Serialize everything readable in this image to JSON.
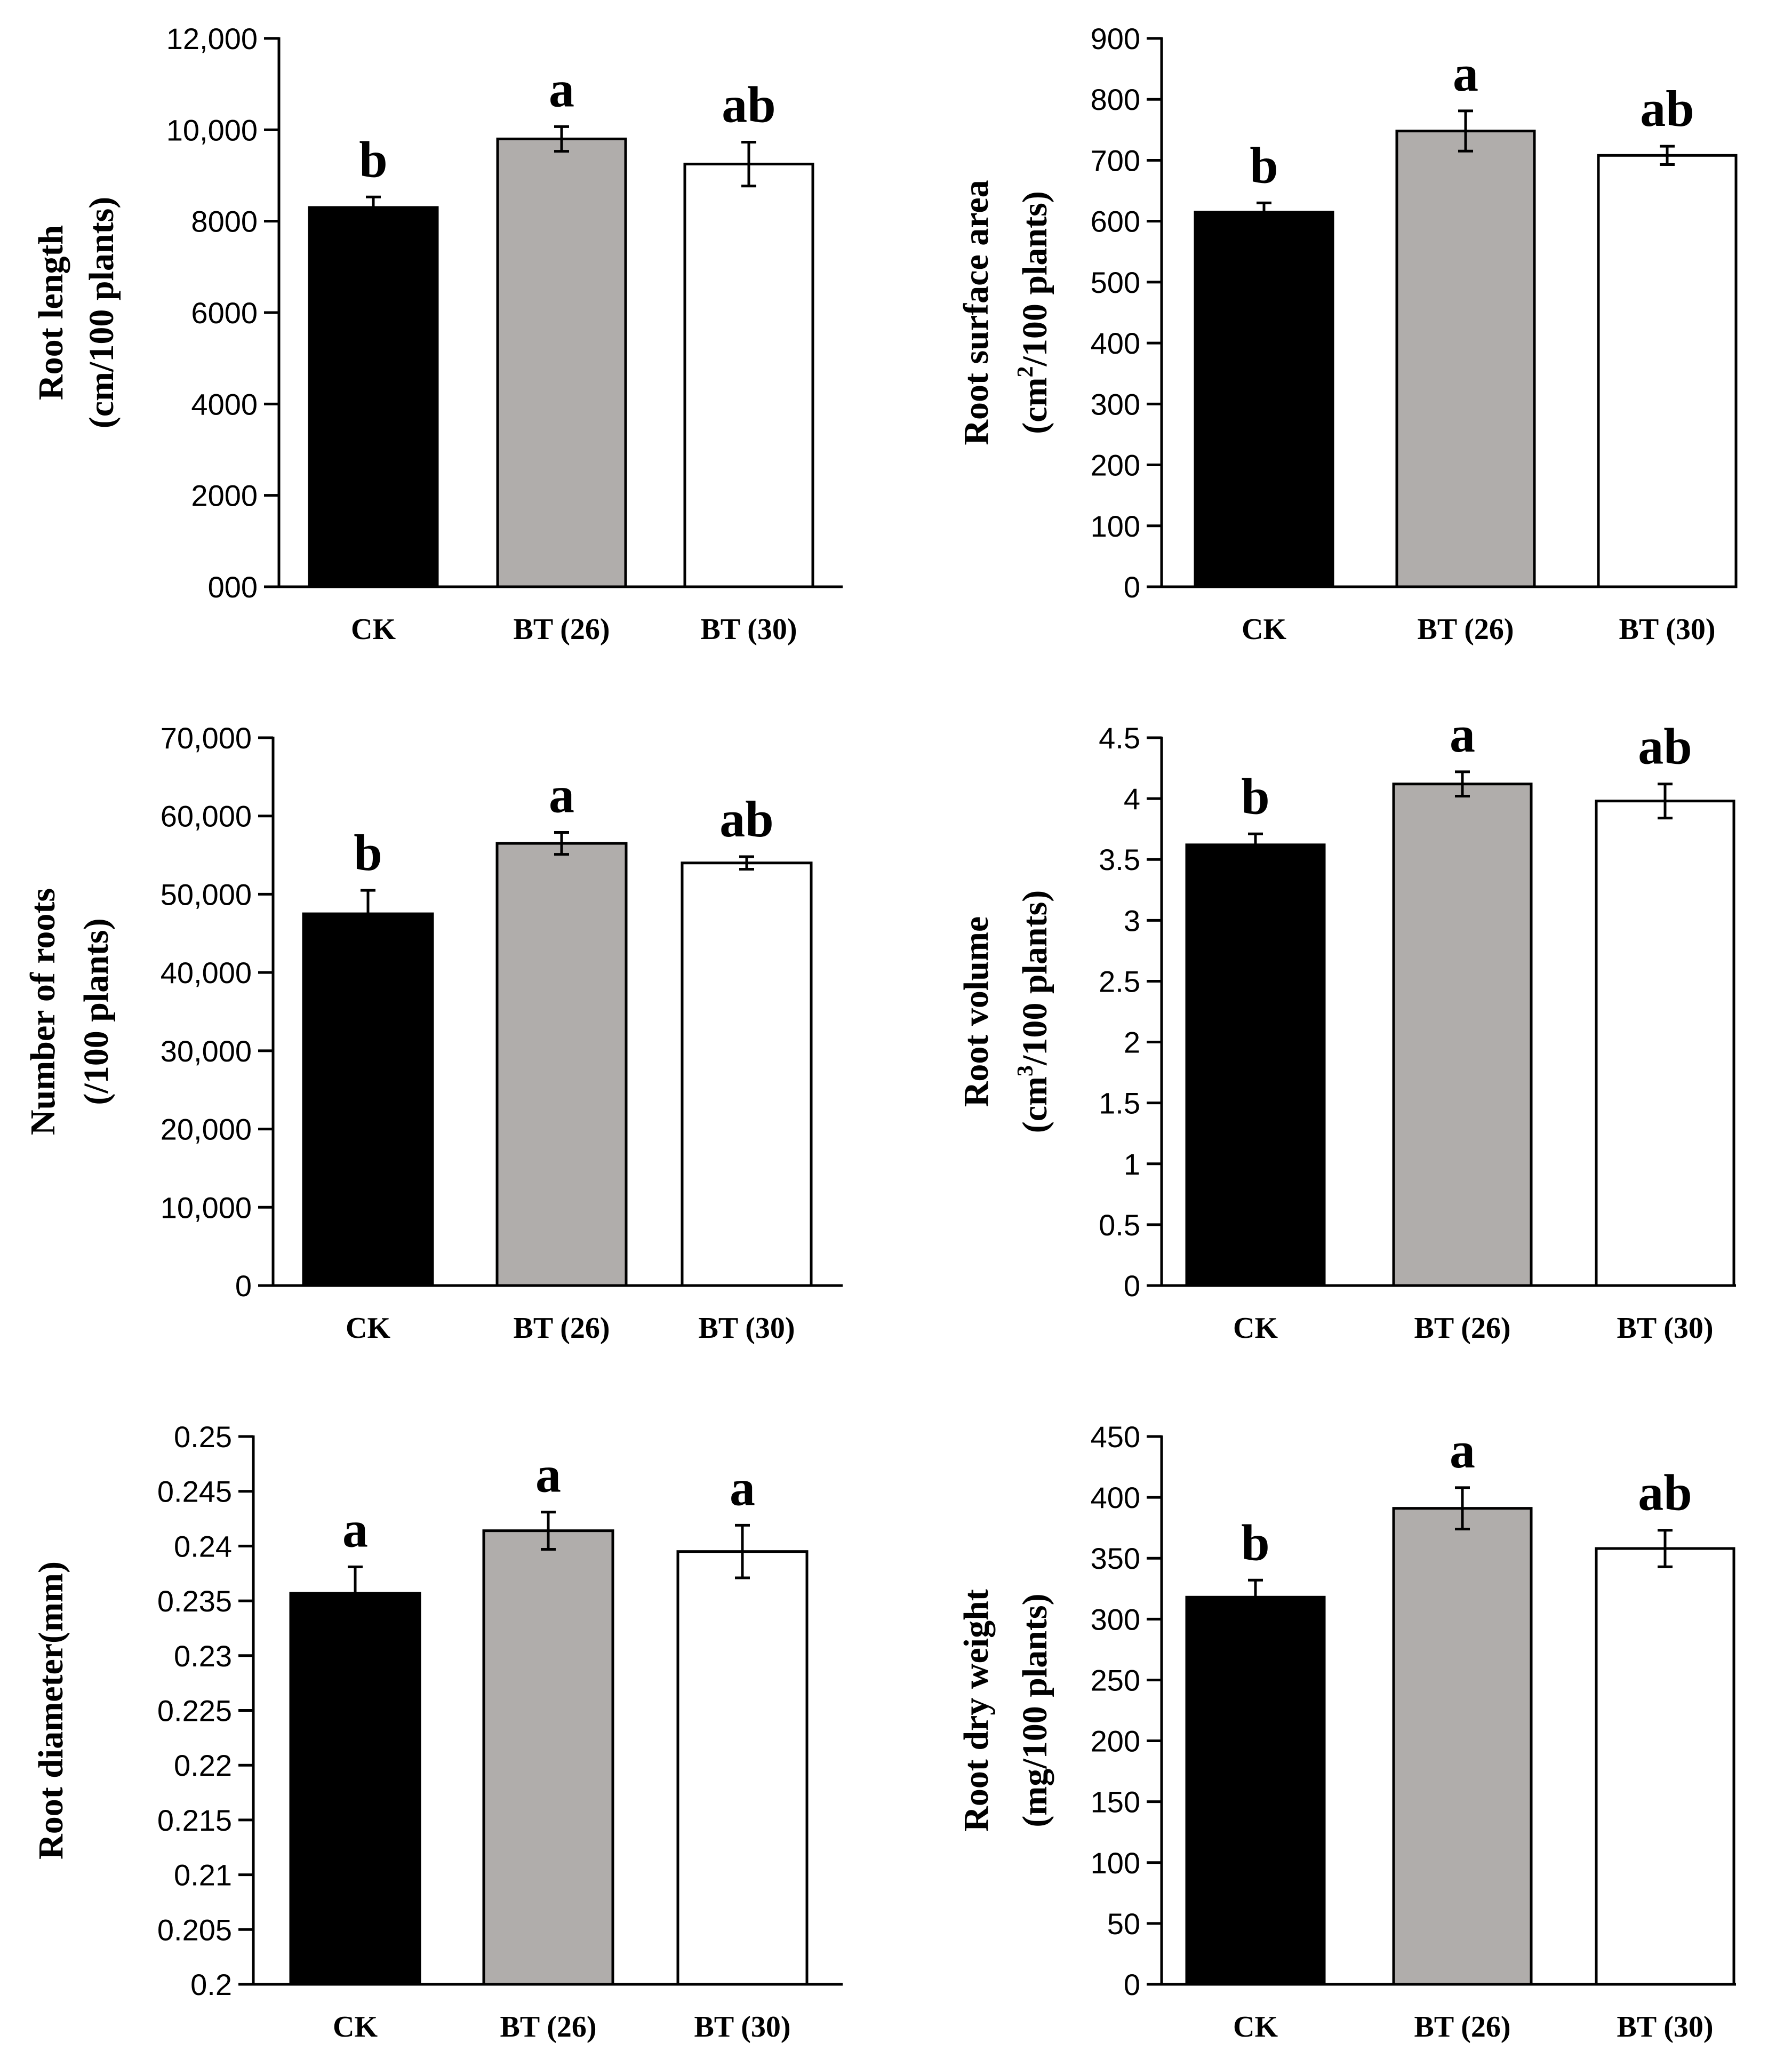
{
  "figure": {
    "categories": [
      "CK",
      "BT (26)",
      "BT (30)"
    ],
    "bar_fill_colors": [
      "#000000",
      "#b0adab",
      "#ffffff"
    ],
    "bar_stroke_color": "#000000"
  },
  "chart_data": [
    {
      "type": "bar",
      "ylabel": [
        "Root length",
        "(cm/100 plants)"
      ],
      "categories": [
        "CK",
        "BT (26)",
        "BT (30)"
      ],
      "values": [
        8300,
        9800,
        9250
      ],
      "errors": [
        230,
        270,
        480
      ],
      "letters": [
        "b",
        "a",
        "ab"
      ],
      "ylim": [
        0,
        12000
      ],
      "ticks": [
        0,
        2000,
        4000,
        6000,
        8000,
        10000,
        12000
      ],
      "tick_labels": [
        "000",
        "2000",
        "4000",
        "6000",
        "8000",
        "10,000",
        "12,000"
      ]
    },
    {
      "type": "bar",
      "ylabel": [
        "Root surface area",
        "(cm",
        "2",
        "/100 plants)"
      ],
      "categories": [
        "CK",
        "BT (26)",
        "BT (30)"
      ],
      "values": [
        615,
        748,
        708
      ],
      "errors": [
        15,
        33,
        15
      ],
      "letters": [
        "b",
        "a",
        "ab"
      ],
      "ylim": [
        0,
        900
      ],
      "ticks": [
        0,
        100,
        200,
        300,
        400,
        500,
        600,
        700,
        800,
        900
      ],
      "tick_labels": [
        "0",
        "100",
        "200",
        "300",
        "400",
        "500",
        "600",
        "700",
        "800",
        "900"
      ]
    },
    {
      "type": "bar",
      "ylabel": [
        "Number of roots",
        "(/100 plants)"
      ],
      "categories": [
        "CK",
        "BT (26)",
        "BT (30)"
      ],
      "values": [
        47500,
        56500,
        54000
      ],
      "errors": [
        3000,
        1400,
        800
      ],
      "letters": [
        "b",
        "a",
        "ab"
      ],
      "ylim": [
        0,
        70000
      ],
      "ticks": [
        0,
        10000,
        20000,
        30000,
        40000,
        50000,
        60000,
        70000
      ],
      "tick_labels": [
        "0",
        "10,000",
        "20,000",
        "30,000",
        "40,000",
        "50,000",
        "60,000",
        "70,000"
      ]
    },
    {
      "type": "bar",
      "ylabel": [
        "Root volume",
        "(cm",
        "3",
        "/100 plants)"
      ],
      "categories": [
        "CK",
        "BT (26)",
        "BT (30)"
      ],
      "values": [
        3.62,
        4.12,
        3.98
      ],
      "errors": [
        0.09,
        0.1,
        0.14
      ],
      "letters": [
        "b",
        "a",
        "ab"
      ],
      "ylim": [
        0,
        4.5
      ],
      "ticks": [
        0,
        0.5,
        1,
        1.5,
        2,
        2.5,
        3,
        3.5,
        4,
        4.5
      ],
      "tick_labels": [
        "0",
        "0.5",
        "1",
        "1.5",
        "2",
        "2.5",
        "3",
        "3.5",
        "4",
        "4.5"
      ]
    },
    {
      "type": "bar",
      "ylabel": [
        "Root diameter(mm)"
      ],
      "categories": [
        "CK",
        "BT (26)",
        "BT (30)"
      ],
      "values": [
        0.2357,
        0.2414,
        0.2395
      ],
      "errors": [
        0.0024,
        0.0017,
        0.0024
      ],
      "letters": [
        "a",
        "a",
        "a"
      ],
      "ylim": [
        0.2,
        0.25
      ],
      "ticks": [
        0.2,
        0.205,
        0.21,
        0.215,
        0.22,
        0.225,
        0.23,
        0.235,
        0.24,
        0.245,
        0.25
      ],
      "tick_labels": [
        "0.2",
        "0.205",
        "0.21",
        "0.215",
        "0.22",
        "0.225",
        "0.23",
        "0.235",
        "0.24",
        "0.245",
        "0.25"
      ]
    },
    {
      "type": "bar",
      "ylabel": [
        "Root dry weight",
        "(mg/100 plants)"
      ],
      "categories": [
        "CK",
        "BT (26)",
        "BT (30)"
      ],
      "values": [
        318,
        391,
        358
      ],
      "errors": [
        14,
        17,
        15
      ],
      "letters": [
        "b",
        "a",
        "ab"
      ],
      "ylim": [
        0,
        450
      ],
      "ticks": [
        0,
        50,
        100,
        150,
        200,
        250,
        300,
        350,
        400,
        450
      ],
      "tick_labels": [
        "0",
        "50",
        "100",
        "150",
        "200",
        "250",
        "300",
        "350",
        "400",
        "450"
      ]
    }
  ]
}
